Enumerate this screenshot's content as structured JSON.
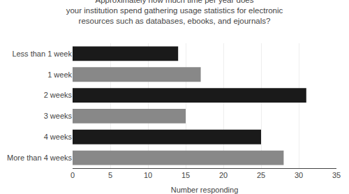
{
  "chart_data": {
    "type": "bar",
    "orientation": "horizontal",
    "title": "Approximately how much time per year does\nyour institution spend gathering usage statistics for electronic\nresources such as databases, ebooks, and ejournals?",
    "xlabel": "Number responding",
    "categories": [
      "Less than 1 week",
      "1 week",
      "2 weeks",
      "3 weeks",
      "4 weeks",
      "More than 4 weeks"
    ],
    "values": [
      14,
      17,
      31,
      15,
      25,
      28
    ],
    "colors": [
      "#1a1a1a",
      "#888888",
      "#1a1a1a",
      "#888888",
      "#1a1a1a",
      "#888888"
    ],
    "xlim": [
      0,
      35
    ],
    "xticks": [
      0,
      5,
      10,
      15,
      20,
      25,
      30,
      35
    ],
    "grid": true
  }
}
